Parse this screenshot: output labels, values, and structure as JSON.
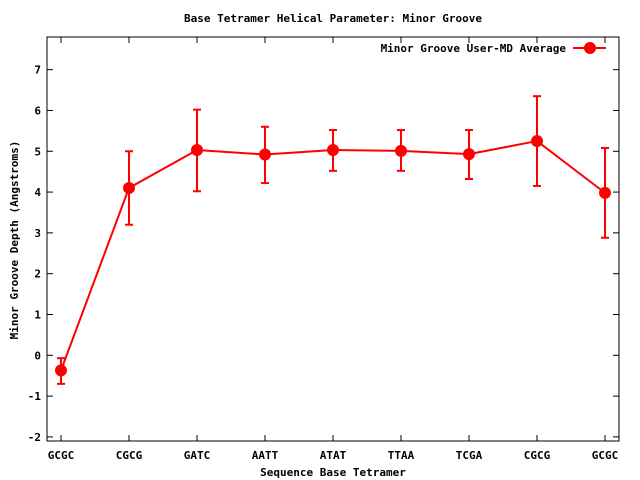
{
  "chart_data": {
    "type": "line",
    "title": "Base Tetramer Helical Parameter: Minor Groove",
    "xlabel": "Sequence Base Tetramer",
    "ylabel": "Minor Groove Depth (Angstroms)",
    "categories": [
      "GCGC",
      "CGCG",
      "GATC",
      "AATT",
      "ATAT",
      "TTAA",
      "TCGA",
      "CGCG",
      "GCGC"
    ],
    "ylim": [
      -2.1,
      7.8
    ],
    "yticks": [
      "-2",
      "-1",
      "0",
      "1",
      "2",
      "3",
      "4",
      "5",
      "6",
      "7"
    ],
    "grid": false,
    "legend_position": "top-right",
    "series": [
      {
        "name": "Minor Groove User-MD Average",
        "color": "#ff0000",
        "values": [
          -0.37,
          4.1,
          5.03,
          4.92,
          5.03,
          5.01,
          4.93,
          5.25,
          3.98
        ],
        "err_low": [
          -0.7,
          3.2,
          4.02,
          4.22,
          4.52,
          4.52,
          4.32,
          4.15,
          2.88
        ],
        "err_high": [
          -0.07,
          5.0,
          6.02,
          5.6,
          5.52,
          5.52,
          5.52,
          6.35,
          5.08
        ]
      }
    ]
  }
}
